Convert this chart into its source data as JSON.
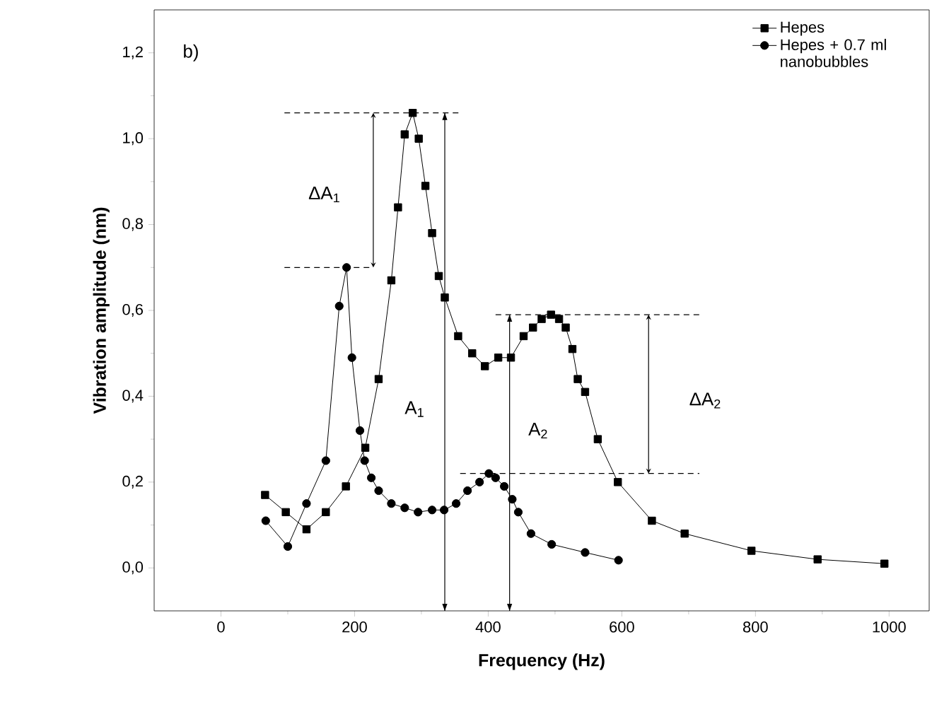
{
  "chart_data": {
    "type": "line",
    "xlabel": "Frequency (Hz)",
    "ylabel": "Vibration amplitude (nm)",
    "xlim": [
      -100,
      1060
    ],
    "ylim": [
      -0.1,
      1.3
    ],
    "xticks": [
      0,
      200,
      400,
      600,
      800,
      1000
    ],
    "yticks": [
      {
        "value": 0,
        "label": "0,0"
      },
      {
        "value": 0.2,
        "label": "0,2"
      },
      {
        "value": 0.4,
        "label": "0,4"
      },
      {
        "value": 0.6,
        "label": "0,6"
      },
      {
        "value": 0.8,
        "label": "0,8"
      },
      {
        "value": 1.0,
        "label": "1,0"
      },
      {
        "value": 1.2,
        "label": "1,2"
      }
    ],
    "grid": false,
    "legend": "top right",
    "series": [
      {
        "name": "Hepes",
        "color": "#000000",
        "marker": "square",
        "x": [
          66,
          97,
          128,
          157,
          187,
          216,
          236,
          255,
          265,
          275,
          287,
          296,
          306,
          316,
          326,
          335,
          355,
          376,
          395,
          415,
          434,
          453,
          467,
          480,
          494,
          506,
          516,
          526,
          534,
          545,
          564,
          594,
          645,
          694,
          794,
          893,
          993
        ],
        "values": [
          0.17,
          0.13,
          0.09,
          0.13,
          0.19,
          0.28,
          0.44,
          0.67,
          0.84,
          1.01,
          1.06,
          1.0,
          0.89,
          0.78,
          0.68,
          0.63,
          0.54,
          0.5,
          0.47,
          0.49,
          0.49,
          0.54,
          0.56,
          0.58,
          0.59,
          0.58,
          0.56,
          0.51,
          0.44,
          0.41,
          0.3,
          0.2,
          0.11,
          0.08,
          0.04,
          0.02,
          0.01
        ]
      },
      {
        "name": "Hepes + 0.7 ml nanobubbles",
        "color": "#000000",
        "marker": "circle",
        "x": [
          67,
          100,
          128,
          157,
          177,
          188,
          196,
          208,
          215,
          225,
          236,
          255,
          275,
          295,
          316,
          334,
          352,
          369,
          387,
          401,
          411,
          424,
          436,
          445,
          464,
          495,
          545,
          595
        ],
        "values": [
          0.11,
          0.05,
          0.15,
          0.25,
          0.61,
          0.7,
          0.49,
          0.32,
          0.25,
          0.21,
          0.18,
          0.15,
          0.14,
          0.13,
          0.135,
          0.135,
          0.15,
          0.18,
          0.2,
          0.22,
          0.21,
          0.19,
          0.16,
          0.13,
          0.08,
          0.055,
          0.036,
          0.018
        ]
      }
    ],
    "ref_lines": [
      {
        "axis": "y",
        "value": 1.06,
        "line_style": "dashed"
      },
      {
        "axis": "y",
        "value": 0.7,
        "line_style": "dashed"
      },
      {
        "axis": "y",
        "value": 0.59,
        "line_style": "dashed"
      },
      {
        "axis": "y",
        "value": 0.22,
        "line_style": "dashed"
      },
      {
        "axis": "x",
        "value": 335
      },
      {
        "axis": "x",
        "value": 432
      }
    ],
    "annotations": [
      "b)",
      "ΔA$_{1}$",
      "A$_{1}$",
      "A$_{2}$",
      "ΔA$_{2}$"
    ]
  }
}
